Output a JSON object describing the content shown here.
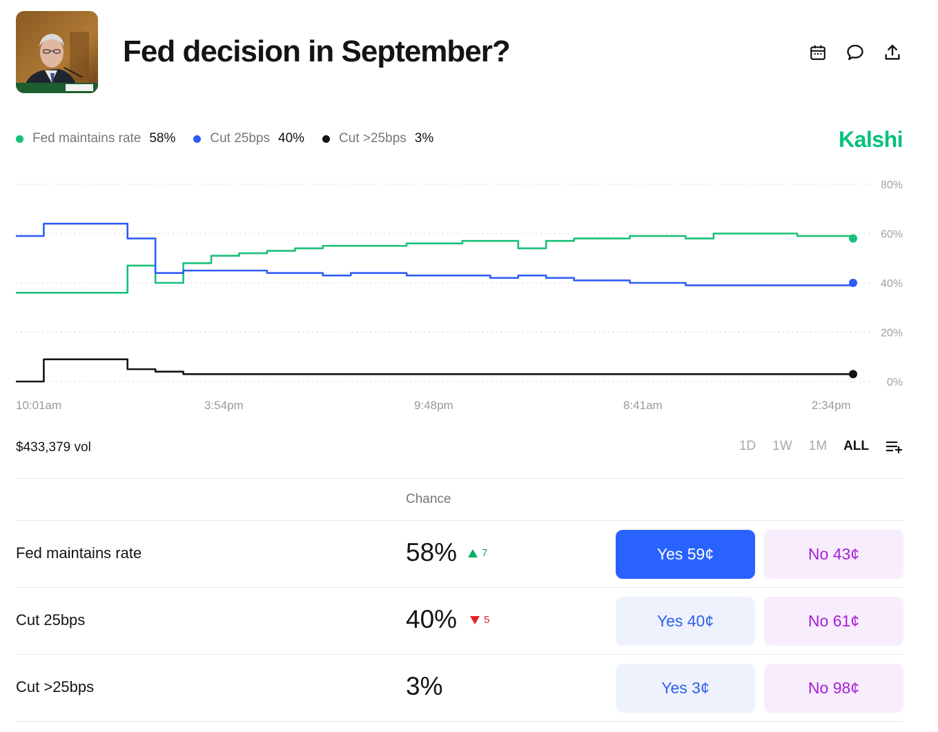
{
  "header": {
    "title": "Fed decision in September?",
    "thumbnail": "speaker-photo"
  },
  "legend": [
    {
      "name": "Fed maintains rate",
      "value": "58%",
      "color": "#17c07a"
    },
    {
      "name": "Cut 25bps",
      "value": "40%",
      "color": "#2f5cf5"
    },
    {
      "name": "Cut >25bps",
      "value": "3%",
      "color": "#141414"
    }
  ],
  "brand": "Kalshi",
  "chart_data": {
    "type": "line",
    "ylim": [
      0,
      80
    ],
    "yticks": [
      "80%",
      "60%",
      "40%",
      "20%",
      "0%"
    ],
    "xticks": [
      "10:01am",
      "3:54pm",
      "9:48pm",
      "8:41am",
      "2:34pm"
    ],
    "grid": true,
    "series": [
      {
        "name": "Fed maintains rate",
        "color": "#17c07a",
        "values": [
          36,
          36,
          36,
          36,
          47,
          40,
          48,
          51,
          52,
          53,
          54,
          55,
          55,
          55,
          56,
          56,
          57,
          57,
          54,
          57,
          58,
          58,
          59,
          59,
          58,
          60,
          60,
          60,
          59,
          59,
          58
        ]
      },
      {
        "name": "Cut 25bps",
        "color": "#2f5cf5",
        "values": [
          59,
          64,
          64,
          64,
          58,
          44,
          45,
          45,
          45,
          44,
          44,
          43,
          44,
          44,
          43,
          43,
          43,
          42,
          43,
          42,
          41,
          41,
          40,
          40,
          39,
          39,
          39,
          39,
          39,
          39,
          40
        ]
      },
      {
        "name": "Cut >25bps",
        "color": "#141414",
        "values": [
          0,
          9,
          9,
          9,
          5,
          4,
          3,
          3,
          3,
          3,
          3,
          3,
          3,
          3,
          3,
          3,
          3,
          3,
          3,
          3,
          3,
          3,
          3,
          3,
          3,
          3,
          3,
          3,
          3,
          3,
          3
        ]
      }
    ]
  },
  "stats": {
    "volume": "$433,379 vol"
  },
  "ranges": [
    {
      "label": "1D",
      "active": false
    },
    {
      "label": "1W",
      "active": false
    },
    {
      "label": "1M",
      "active": false
    },
    {
      "label": "ALL",
      "active": true
    }
  ],
  "table": {
    "header": "Chance",
    "rows": [
      {
        "name": "Fed maintains rate",
        "chance": "58%",
        "delta": "7",
        "direction": "up",
        "yes": "Yes 59¢",
        "no": "No 43¢"
      },
      {
        "name": "Cut 25bps",
        "chance": "40%",
        "delta": "5",
        "direction": "down",
        "yes": "Yes 40¢",
        "no": "No 61¢"
      },
      {
        "name": "Cut >25bps",
        "chance": "3%",
        "delta": "",
        "direction": "",
        "yes": "Yes 3¢",
        "no": "No 98¢"
      }
    ]
  }
}
